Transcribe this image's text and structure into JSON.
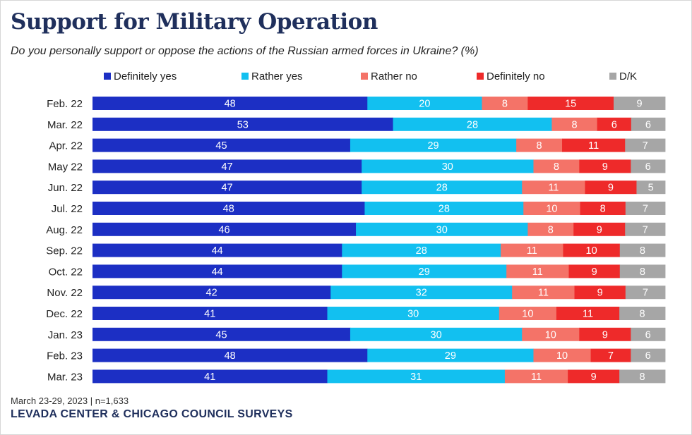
{
  "chart_data": {
    "type": "bar",
    "orientation": "horizontal",
    "stacked": true,
    "title": "Support for Military Operation",
    "subtitle": "Do you personally support or oppose the actions of the Russian armed forces in Ukraine? (%)",
    "categories": [
      "Feb. 22",
      "Mar. 22",
      "Apr. 22",
      "May 22",
      "Jun. 22",
      "Jul. 22",
      "Aug. 22",
      "Sep. 22",
      "Oct. 22",
      "Nov. 22",
      "Dec. 22",
      "Jan. 23",
      "Feb. 23",
      "Mar. 23"
    ],
    "series": [
      {
        "name": "Definitely yes",
        "color": "#1c2fc4",
        "label_color": "#ffffff",
        "values": [
          48,
          53,
          45,
          47,
          47,
          48,
          46,
          44,
          44,
          42,
          41,
          45,
          48,
          41
        ]
      },
      {
        "name": "Rather yes",
        "color": "#12c0f0",
        "label_color": "#ffffff",
        "values": [
          20,
          28,
          29,
          30,
          28,
          28,
          30,
          28,
          29,
          32,
          30,
          30,
          29,
          31
        ]
      },
      {
        "name": "Rather no",
        "color": "#f47368",
        "label_color": "#ffffff",
        "values": [
          8,
          8,
          8,
          8,
          11,
          10,
          8,
          11,
          11,
          11,
          10,
          10,
          10,
          11
        ]
      },
      {
        "name": "Definitely no",
        "color": "#ee2a2a",
        "label_color": "#ffffff",
        "values": [
          15,
          6,
          11,
          9,
          9,
          8,
          9,
          10,
          9,
          9,
          11,
          9,
          7,
          9
        ]
      },
      {
        "name": "D/K",
        "color": "#a6a6a6",
        "label_color": "#ffffff",
        "values": [
          9,
          6,
          7,
          6,
          5,
          7,
          7,
          8,
          8,
          7,
          8,
          6,
          6,
          8
        ]
      }
    ],
    "legend_position": "top",
    "grid": false
  },
  "footer": {
    "note": "March 23-29, 2023 | n=1,633",
    "source": "LEVADA CENTER & CHICAGO COUNCIL SURVEYS"
  }
}
